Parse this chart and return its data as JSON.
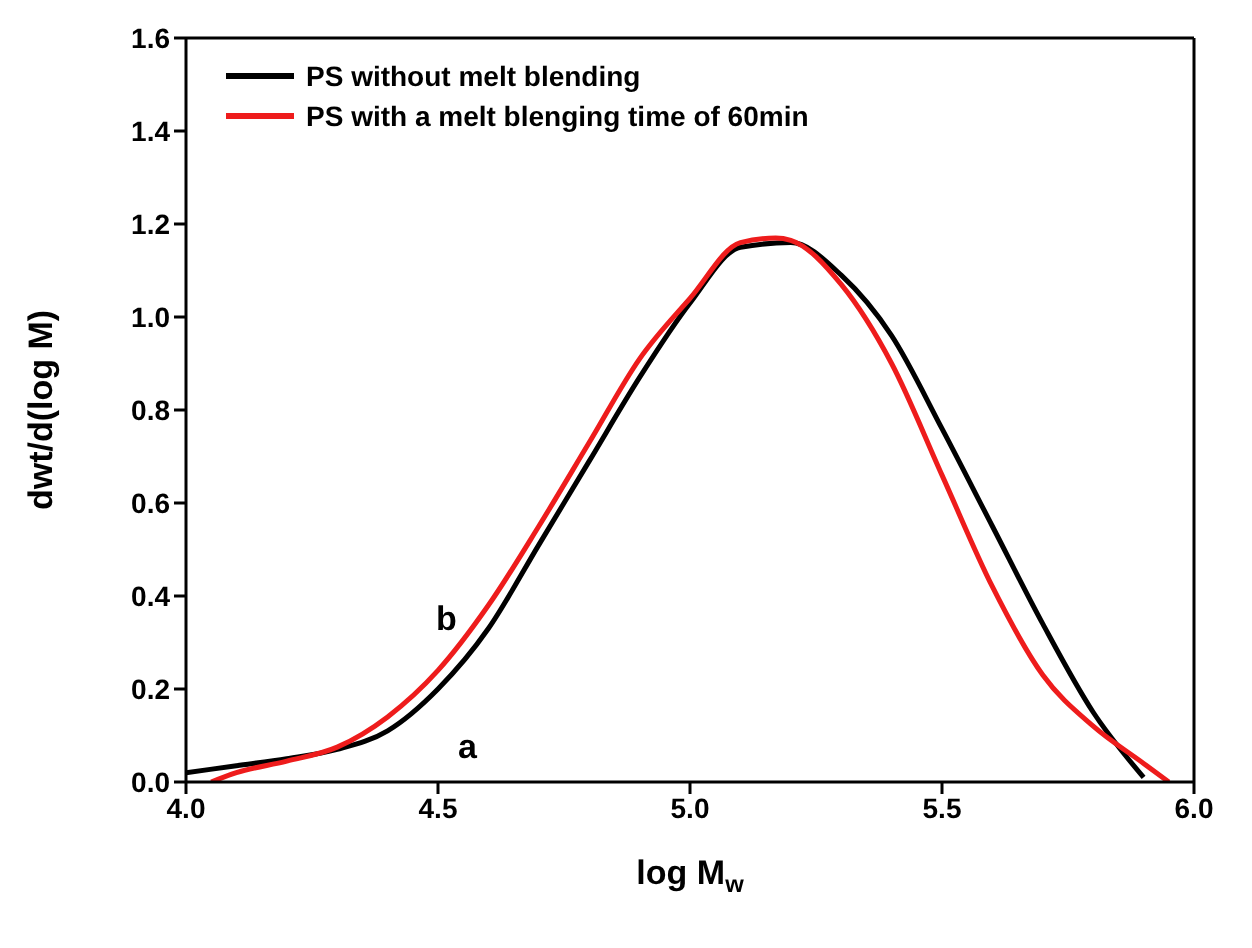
{
  "chart_data": {
    "type": "line",
    "xlabel": "log M$_{w}$",
    "ylabel": "dwt/d(log M)",
    "xlim": [
      4.0,
      6.0
    ],
    "xticks": [
      {
        "value": 4.0,
        "label": "4.0"
      },
      {
        "value": 4.5,
        "label": "4.5"
      },
      {
        "value": 5.0,
        "label": "5.0"
      },
      {
        "value": 5.5,
        "label": "5.5"
      },
      {
        "value": 6.0,
        "label": "6.0"
      }
    ],
    "ylim": [
      0,
      1.6
    ],
    "yticks": [
      {
        "value": 0,
        "label": "0.0"
      },
      {
        "value": 0.2,
        "label": "0.2"
      },
      {
        "value": 0.4,
        "label": "0.4"
      },
      {
        "value": 0.6,
        "label": "0.6"
      },
      {
        "value": 0.8,
        "label": "0.8"
      },
      {
        "value": 1.0,
        "label": "1.0"
      },
      {
        "value": 1.2,
        "label": "1.2"
      },
      {
        "value": 1.4,
        "label": "1.4"
      },
      {
        "value": 1.6,
        "label": "1.6"
      }
    ],
    "grid": false,
    "legend": "top left",
    "marker": "none",
    "line_style": "solid",
    "series": [
      {
        "name": "PS without melt blending",
        "color": "#000000",
        "x": [
          4.0,
          4.1,
          4.2,
          4.3,
          4.4,
          4.5,
          4.6,
          4.7,
          4.8,
          4.9,
          5.0,
          5.1,
          5.2,
          5.3,
          5.4,
          5.5,
          5.6,
          5.7,
          5.8,
          5.9
        ],
        "values": [
          0.02,
          0.035,
          0.05,
          0.07,
          0.11,
          0.2,
          0.33,
          0.51,
          0.69,
          0.87,
          1.03,
          1.15,
          1.16,
          1.09,
          0.96,
          0.76,
          0.55,
          0.34,
          0.15,
          0.01
        ]
      },
      {
        "name": "PS with a melt blenging time of 60min",
        "color": "#ee1c1c",
        "x": [
          4.05,
          4.1,
          4.2,
          4.3,
          4.4,
          4.5,
          4.6,
          4.7,
          4.8,
          4.9,
          5.0,
          5.1,
          5.17,
          5.2,
          5.3,
          5.4,
          5.5,
          5.6,
          5.7,
          5.8,
          5.9,
          5.95
        ],
        "values": [
          0,
          0.02,
          0.045,
          0.075,
          0.14,
          0.24,
          0.38,
          0.55,
          0.73,
          0.91,
          1.04,
          1.16,
          1.17,
          1.165,
          1.07,
          0.9,
          0.66,
          0.42,
          0.23,
          0.12,
          0.04,
          0
        ]
      }
    ],
    "annotations": [
      "a",
      "b"
    ]
  }
}
